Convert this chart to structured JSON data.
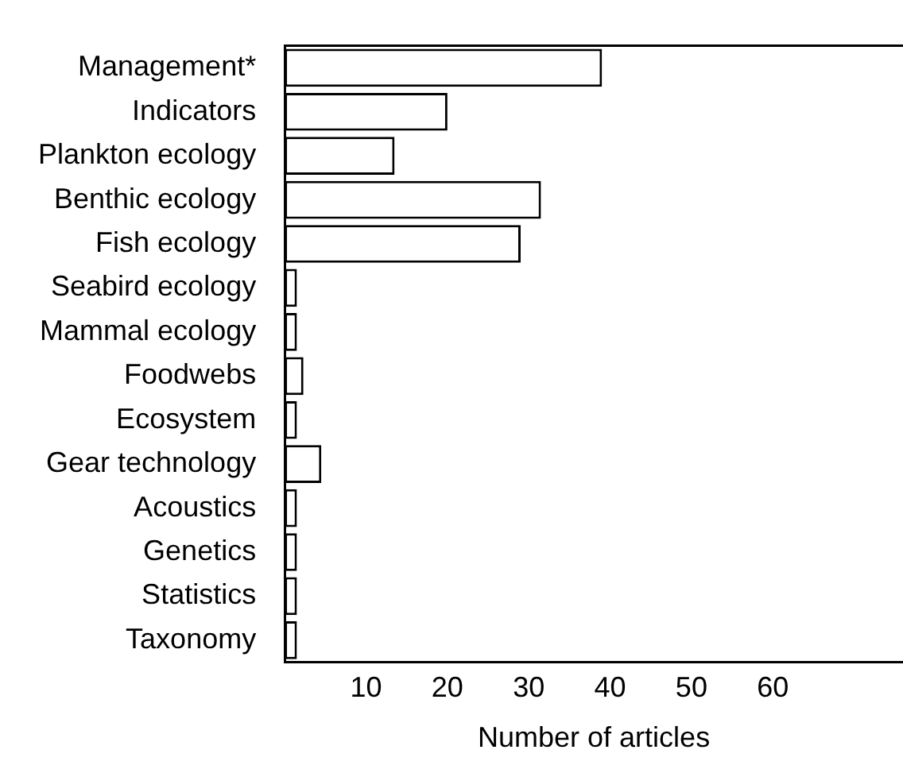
{
  "chart_data": {
    "type": "bar",
    "orientation": "horizontal",
    "xlabel": "Number of articles",
    "categories": [
      "Management*",
      "Indicators",
      "Plankton ecology",
      "Benthic ecology",
      "Fish ecology",
      "Seabird ecology",
      "Mammal ecology",
      "Foodwebs",
      "Ecosystem",
      "Gear technology",
      "Acoustics",
      "Genetics",
      "Statistics",
      "Taxonomy"
    ],
    "values": [
      39,
      20,
      13.5,
      31.5,
      29,
      1.5,
      1.5,
      2.3,
      1.5,
      4.5,
      1.5,
      1.5,
      1.5,
      1.5
    ],
    "color": "#ffffff",
    "xlim": [
      0,
      76
    ],
    "xticks": [
      10,
      20,
      30,
      40,
      50,
      60
    ],
    "grid": false,
    "legend": false
  }
}
